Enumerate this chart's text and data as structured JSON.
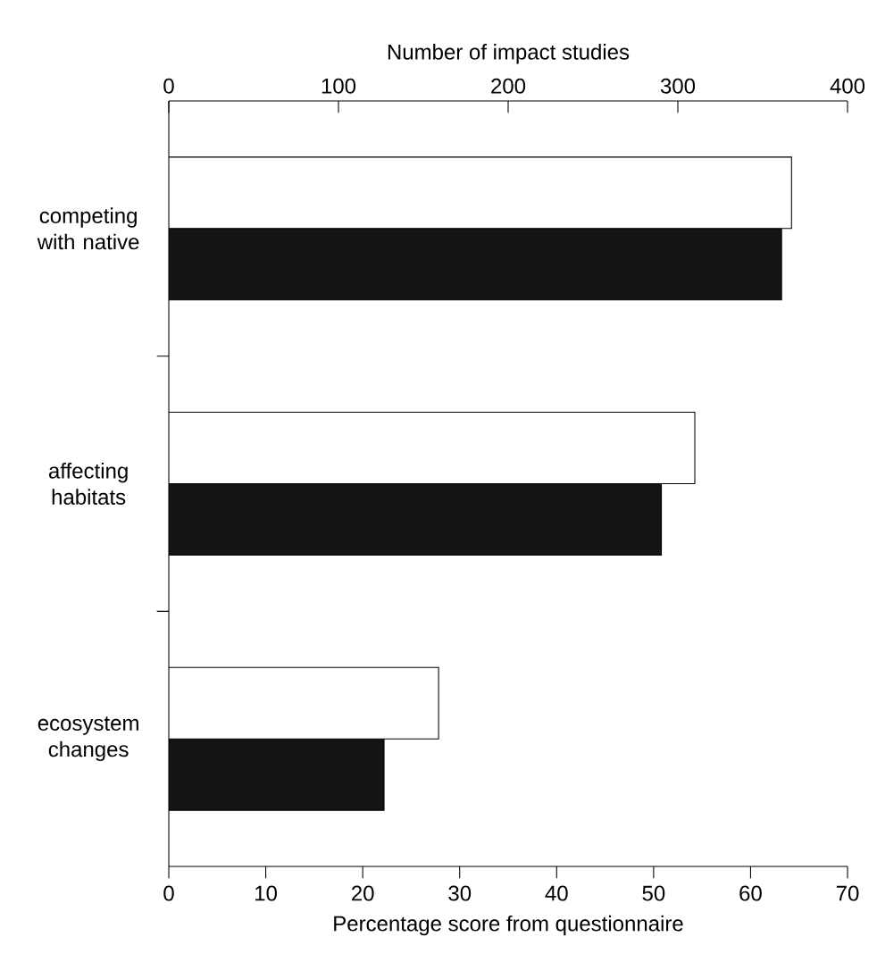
{
  "chart_data": {
    "type": "bar",
    "orientation": "horizontal",
    "categories": [
      "competing with native",
      "affecting habitats",
      "ecosystem changes"
    ],
    "series": [
      {
        "color": "#ffffff",
        "axis": "x2",
        "values": [
          367,
          310,
          159
        ]
      },
      {
        "color": "#141414",
        "values": [
          63.2,
          50.8,
          22.2
        ]
      }
    ],
    "xlabel": "Percentage score from questionnaire",
    "x2label": "Number of impact studies",
    "xlim": [
      0,
      70
    ],
    "xticks": [
      0,
      10,
      20,
      30,
      40,
      50,
      60,
      70
    ],
    "x2lim": [
      0,
      400
    ],
    "x2ticks": [
      0,
      100,
      200,
      300,
      400
    ]
  }
}
